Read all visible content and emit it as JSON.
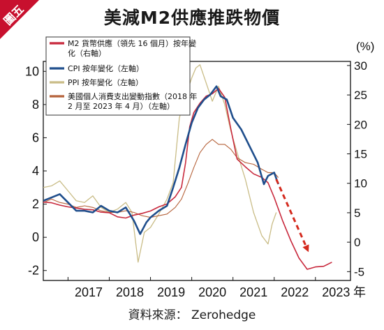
{
  "badge": {
    "label": "圖五"
  },
  "title": "美減M2供應推跌物價",
  "source": "資料來源： Zerohedge",
  "colors": {
    "badge": "#c8102e",
    "m2": "#c8283c",
    "cpi": "#1f4e8c",
    "ppi": "#c9bc86",
    "pce": "#b5623a",
    "arrow": "#d42a1e"
  },
  "chart_data": {
    "type": "line",
    "title": "美減M2供應推跌物價",
    "xlabel": "年",
    "ylabel_left": "",
    "ylabel_right": "(%)",
    "x_ticks": [
      "2017",
      "2018",
      "2019",
      "2020",
      "2021",
      "2022",
      "2023"
    ],
    "x_unit": "年",
    "xlim": [
      2016.4,
      2023.85
    ],
    "left_axis": {
      "ylim": [
        -2.6,
        10.6
      ],
      "ticks": [
        "10",
        "8",
        "6",
        "4",
        "2",
        "0",
        "-2"
      ],
      "tick_values": [
        10,
        8,
        6,
        4,
        2,
        0,
        -2
      ]
    },
    "right_axis": {
      "ylim": [
        -6.5,
        30.7
      ],
      "ticks": [
        "30",
        "25",
        "20",
        "15",
        "10",
        "5",
        "0",
        "-5"
      ],
      "tick_values": [
        30,
        25,
        20,
        15,
        10,
        5,
        0,
        -5
      ]
    },
    "grid": false,
    "legend_position": "top-left",
    "legend": [
      "M2 貨幣供應（領先 16 個月）按年變化（右軸）",
      "CPI 按年變化（左軸）",
      "PPI 按年變化（左軸）",
      "美國個人消費支出變動指數（2018 年 2 月至 2023 年 4 月）（左軸）"
    ],
    "series": [
      {
        "name": "M2 貨幣供應（領先 16 個月）按年變化（右軸）",
        "axis": "right",
        "x": [
          2016.4,
          2016.6,
          2016.8,
          2017.0,
          2017.2,
          2017.4,
          2017.6,
          2017.8,
          2018.0,
          2018.2,
          2018.4,
          2018.6,
          2018.8,
          2019.0,
          2019.2,
          2019.4,
          2019.6,
          2019.75,
          2019.85,
          2019.95,
          2020.05,
          2020.2,
          2020.35,
          2020.5,
          2020.65,
          2020.8,
          2020.95,
          2021.1,
          2021.3,
          2021.5,
          2021.7,
          2021.85,
          2022.0,
          2022.2,
          2022.4,
          2022.6,
          2022.8,
          2023.0,
          2023.2,
          2023.4
        ],
        "values": [
          6.8,
          6.7,
          6.3,
          6.0,
          5.8,
          5.6,
          5.5,
          5.1,
          5.0,
          4.3,
          4.1,
          4.6,
          4.9,
          5.3,
          6.0,
          6.5,
          7.7,
          9.3,
          13.5,
          19.6,
          22.0,
          23.6,
          24.8,
          25.2,
          26.1,
          24.6,
          19.2,
          14.1,
          12.8,
          11.6,
          11.0,
          10.1,
          7.6,
          3.7,
          0.3,
          -2.7,
          -4.6,
          -4.2,
          -4.1,
          -3.4
        ]
      },
      {
        "name": "CPI 按年變化（左軸）",
        "axis": "left",
        "x": [
          2016.4,
          2016.6,
          2016.8,
          2017.0,
          2017.2,
          2017.4,
          2017.6,
          2017.8,
          2018.0,
          2018.2,
          2018.4,
          2018.6,
          2018.75,
          2018.9,
          2019.0,
          2019.2,
          2019.4,
          2019.55,
          2019.7,
          2019.85,
          2020.0,
          2020.15,
          2020.3,
          2020.45,
          2020.6,
          2020.7,
          2020.85,
          2021.0,
          2021.2,
          2021.4,
          2021.6,
          2021.75,
          2021.85,
          2022.0,
          2022.1
        ],
        "values": [
          2.2,
          2.4,
          2.6,
          2.1,
          1.6,
          1.6,
          1.5,
          1.9,
          1.6,
          1.5,
          1.8,
          1.0,
          0.2,
          0.9,
          1.2,
          1.6,
          1.9,
          3.0,
          4.2,
          5.6,
          6.9,
          7.8,
          8.3,
          8.6,
          9.1,
          8.5,
          8.3,
          7.2,
          6.5,
          5.5,
          4.5,
          3.2,
          3.7,
          3.9,
          3.2
        ]
      },
      {
        "name": "PPI 按年變化（左軸）",
        "axis": "left",
        "x": [
          2016.4,
          2016.6,
          2016.8,
          2017.0,
          2017.2,
          2017.4,
          2017.6,
          2017.8,
          2018.0,
          2018.2,
          2018.4,
          2018.55,
          2018.7,
          2018.85,
          2019.0,
          2019.2,
          2019.4,
          2019.55,
          2019.7,
          2019.85,
          2020.0,
          2020.1,
          2020.2,
          2020.35,
          2020.5,
          2020.65,
          2020.8,
          2020.95,
          2021.1,
          2021.3,
          2021.5,
          2021.7,
          2021.85,
          2021.95,
          2022.05
        ],
        "values": [
          3.0,
          3.1,
          3.4,
          2.8,
          2.2,
          2.1,
          2.5,
          1.8,
          1.5,
          1.7,
          2.1,
          1.5,
          -1.5,
          0.3,
          0.6,
          1.4,
          2.3,
          3.3,
          7.2,
          8.5,
          9.6,
          10.2,
          10.4,
          9.3,
          8.2,
          9.1,
          8.0,
          6.4,
          5.1,
          3.5,
          1.5,
          0.1,
          -0.4,
          0.8,
          1.5
        ]
      },
      {
        "name": "美國個人消費支出變動指數（2018 年 2 月至 2023 年 4 月）（左軸）",
        "axis": "left",
        "x": [
          2016.4,
          2016.6,
          2016.8,
          2017.0,
          2017.2,
          2017.4,
          2017.6,
          2017.8,
          2018.0,
          2018.2,
          2018.4,
          2018.6,
          2018.8,
          2019.0,
          2019.2,
          2019.4,
          2019.6,
          2019.75,
          2019.9,
          2020.05,
          2020.2,
          2020.35,
          2020.5,
          2020.65,
          2020.8,
          2020.95,
          2021.1,
          2021.3,
          2021.5,
          2021.7,
          2021.85,
          2022.0,
          2022.1
        ],
        "values": [
          2.1,
          2.3,
          2.1,
          2.0,
          1.8,
          1.9,
          1.8,
          1.6,
          1.5,
          1.5,
          1.6,
          1.5,
          1.3,
          1.2,
          1.3,
          1.4,
          1.8,
          2.3,
          3.2,
          4.2,
          5.1,
          5.6,
          5.9,
          5.6,
          5.6,
          5.3,
          4.8,
          4.5,
          4.4,
          4.1,
          3.9,
          3.9,
          3.6
        ]
      }
    ],
    "annotations": [
      {
        "type": "arrow",
        "style": "dashed",
        "from": [
          2022.05,
          3.5
        ],
        "to": [
          2022.8,
          -0.7
        ],
        "axis": "left"
      }
    ]
  }
}
